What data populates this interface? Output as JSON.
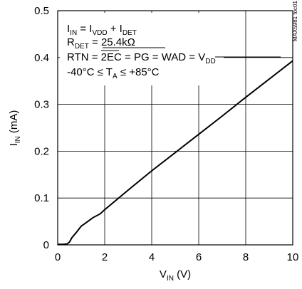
{
  "chart_data": {
    "type": "line",
    "xlabel_main": "V",
    "xlabel_sub": "IN",
    "xlabel_unit": " (V)",
    "ylabel_main": "I",
    "ylabel_sub": "IN",
    "ylabel_unit": " (mA)",
    "xlim": [
      0,
      10
    ],
    "ylim": [
      0,
      0.5
    ],
    "x_ticks": [
      "0",
      "2",
      "4",
      "6",
      "8",
      "10"
    ],
    "y_ticks": [
      "0",
      "0.1",
      "0.2",
      "0.3",
      "0.4",
      "0.5"
    ],
    "grid": true,
    "series": [
      {
        "x": [
          0,
          0.2,
          0.4,
          0.5,
          0.6,
          0.8,
          1.0,
          1.2,
          1.5,
          1.8,
          2.0,
          3,
          4,
          5,
          6,
          7,
          8,
          9,
          10
        ],
        "y": [
          0.001,
          0.001,
          0.002,
          0.006,
          0.015,
          0.027,
          0.04,
          0.047,
          0.058,
          0.066,
          0.075,
          0.117,
          0.158,
          0.197,
          0.236,
          0.275,
          0.315,
          0.354,
          0.393
        ]
      }
    ],
    "annotations": {
      "line1": {
        "a": "I",
        "a_sub": "IN",
        "b": " = I",
        "b_sub": "VDD",
        "c": " + I",
        "c_sub": "DET"
      },
      "line2": {
        "a": "R",
        "a_sub": "DET",
        "b": " = 25.4kΩ"
      },
      "line3": {
        "a": "RTN = ",
        "b": "2EC",
        "c": " = PG = WAD = V",
        "c_sub": "DD"
      },
      "line4": {
        "a": "-40°C ≤ T",
        "a_sub": "A",
        "b": " ≤ +85°C"
      }
    },
    "watermark": "MAX5981 toc01"
  }
}
